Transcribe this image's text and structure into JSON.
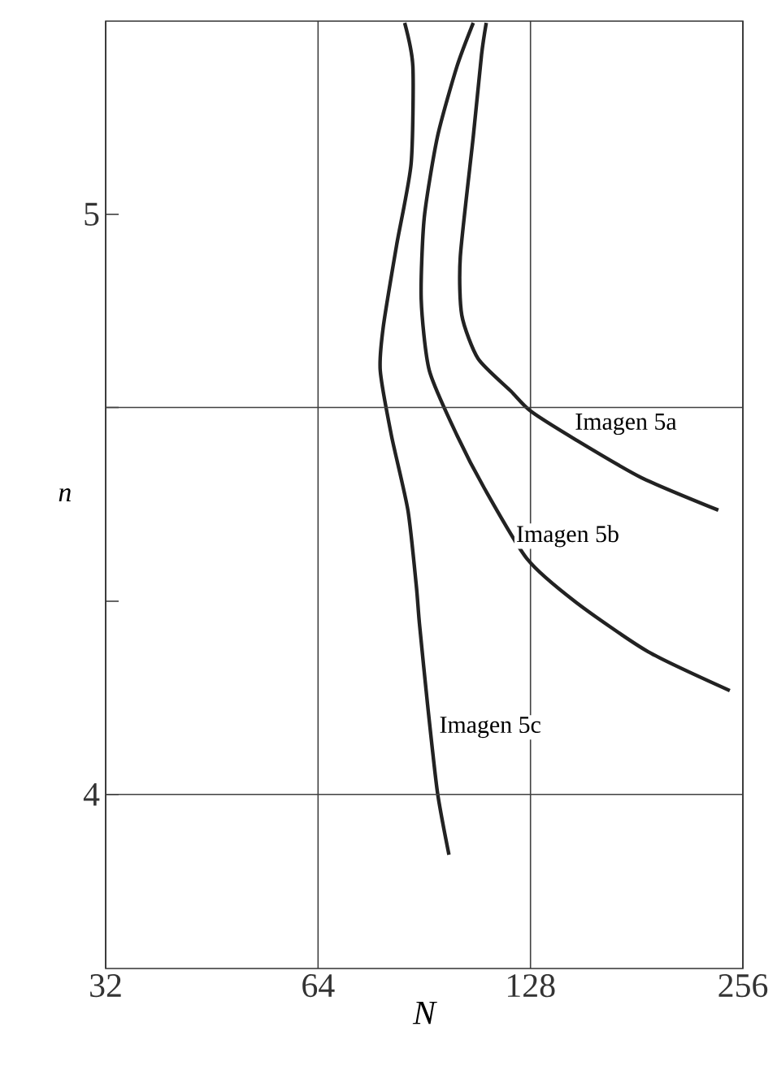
{
  "chart_data": {
    "type": "line",
    "xlabel": "N",
    "ylabel": "n",
    "log": "x",
    "xlim": [
      32,
      256
    ],
    "ylim": [
      3.7,
      5.333
    ],
    "xticks": [
      32,
      64,
      128,
      256
    ],
    "yticks": [
      4,
      {
        "value": 4.333,
        "label": null
      },
      {
        "value": 4.667,
        "label": null
      },
      5
    ],
    "grid": "x",
    "ref_lines": [
      {
        "axis": "y",
        "value": 4
      },
      {
        "axis": "y",
        "value": 4.667
      }
    ],
    "series": [
      {
        "name": "Imagen 5a",
        "color": "#222222",
        "x": [
          110.8,
          109.1,
          106.2,
          101.8,
          102.3,
          107.9,
          120.1,
          128,
          148.6,
          183.9,
          236.3
        ],
        "values": [
          5.33,
          5.275,
          5.134,
          4.927,
          4.826,
          4.751,
          4.695,
          4.661,
          4.611,
          4.546,
          4.49
        ]
      },
      {
        "name": "Imagen 5b",
        "color": "#222222",
        "x": [
          106.2,
          100.7,
          94.5,
          90.5,
          89.6,
          92.0,
          100.7,
          110.2,
          126.6,
          148.6,
          187.9,
          245.3
        ],
        "values": [
          5.33,
          5.255,
          5.134,
          4.994,
          4.854,
          4.731,
          4.619,
          4.527,
          4.406,
          4.331,
          4.246,
          4.179
        ]
      },
      {
        "name": "Imagen 5c",
        "color": "#222222",
        "x": [
          84.9,
          87.2,
          86.7,
          82.7,
          79.2,
          78.4,
          81.3,
          85.8,
          88.2,
          89.1,
          91.5,
          94.5,
          98.1
        ],
        "values": [
          5.33,
          5.255,
          5.087,
          4.947,
          4.807,
          4.731,
          4.619,
          4.49,
          4.359,
          4.294,
          4.154,
          4.003,
          3.896
        ]
      }
    ]
  }
}
